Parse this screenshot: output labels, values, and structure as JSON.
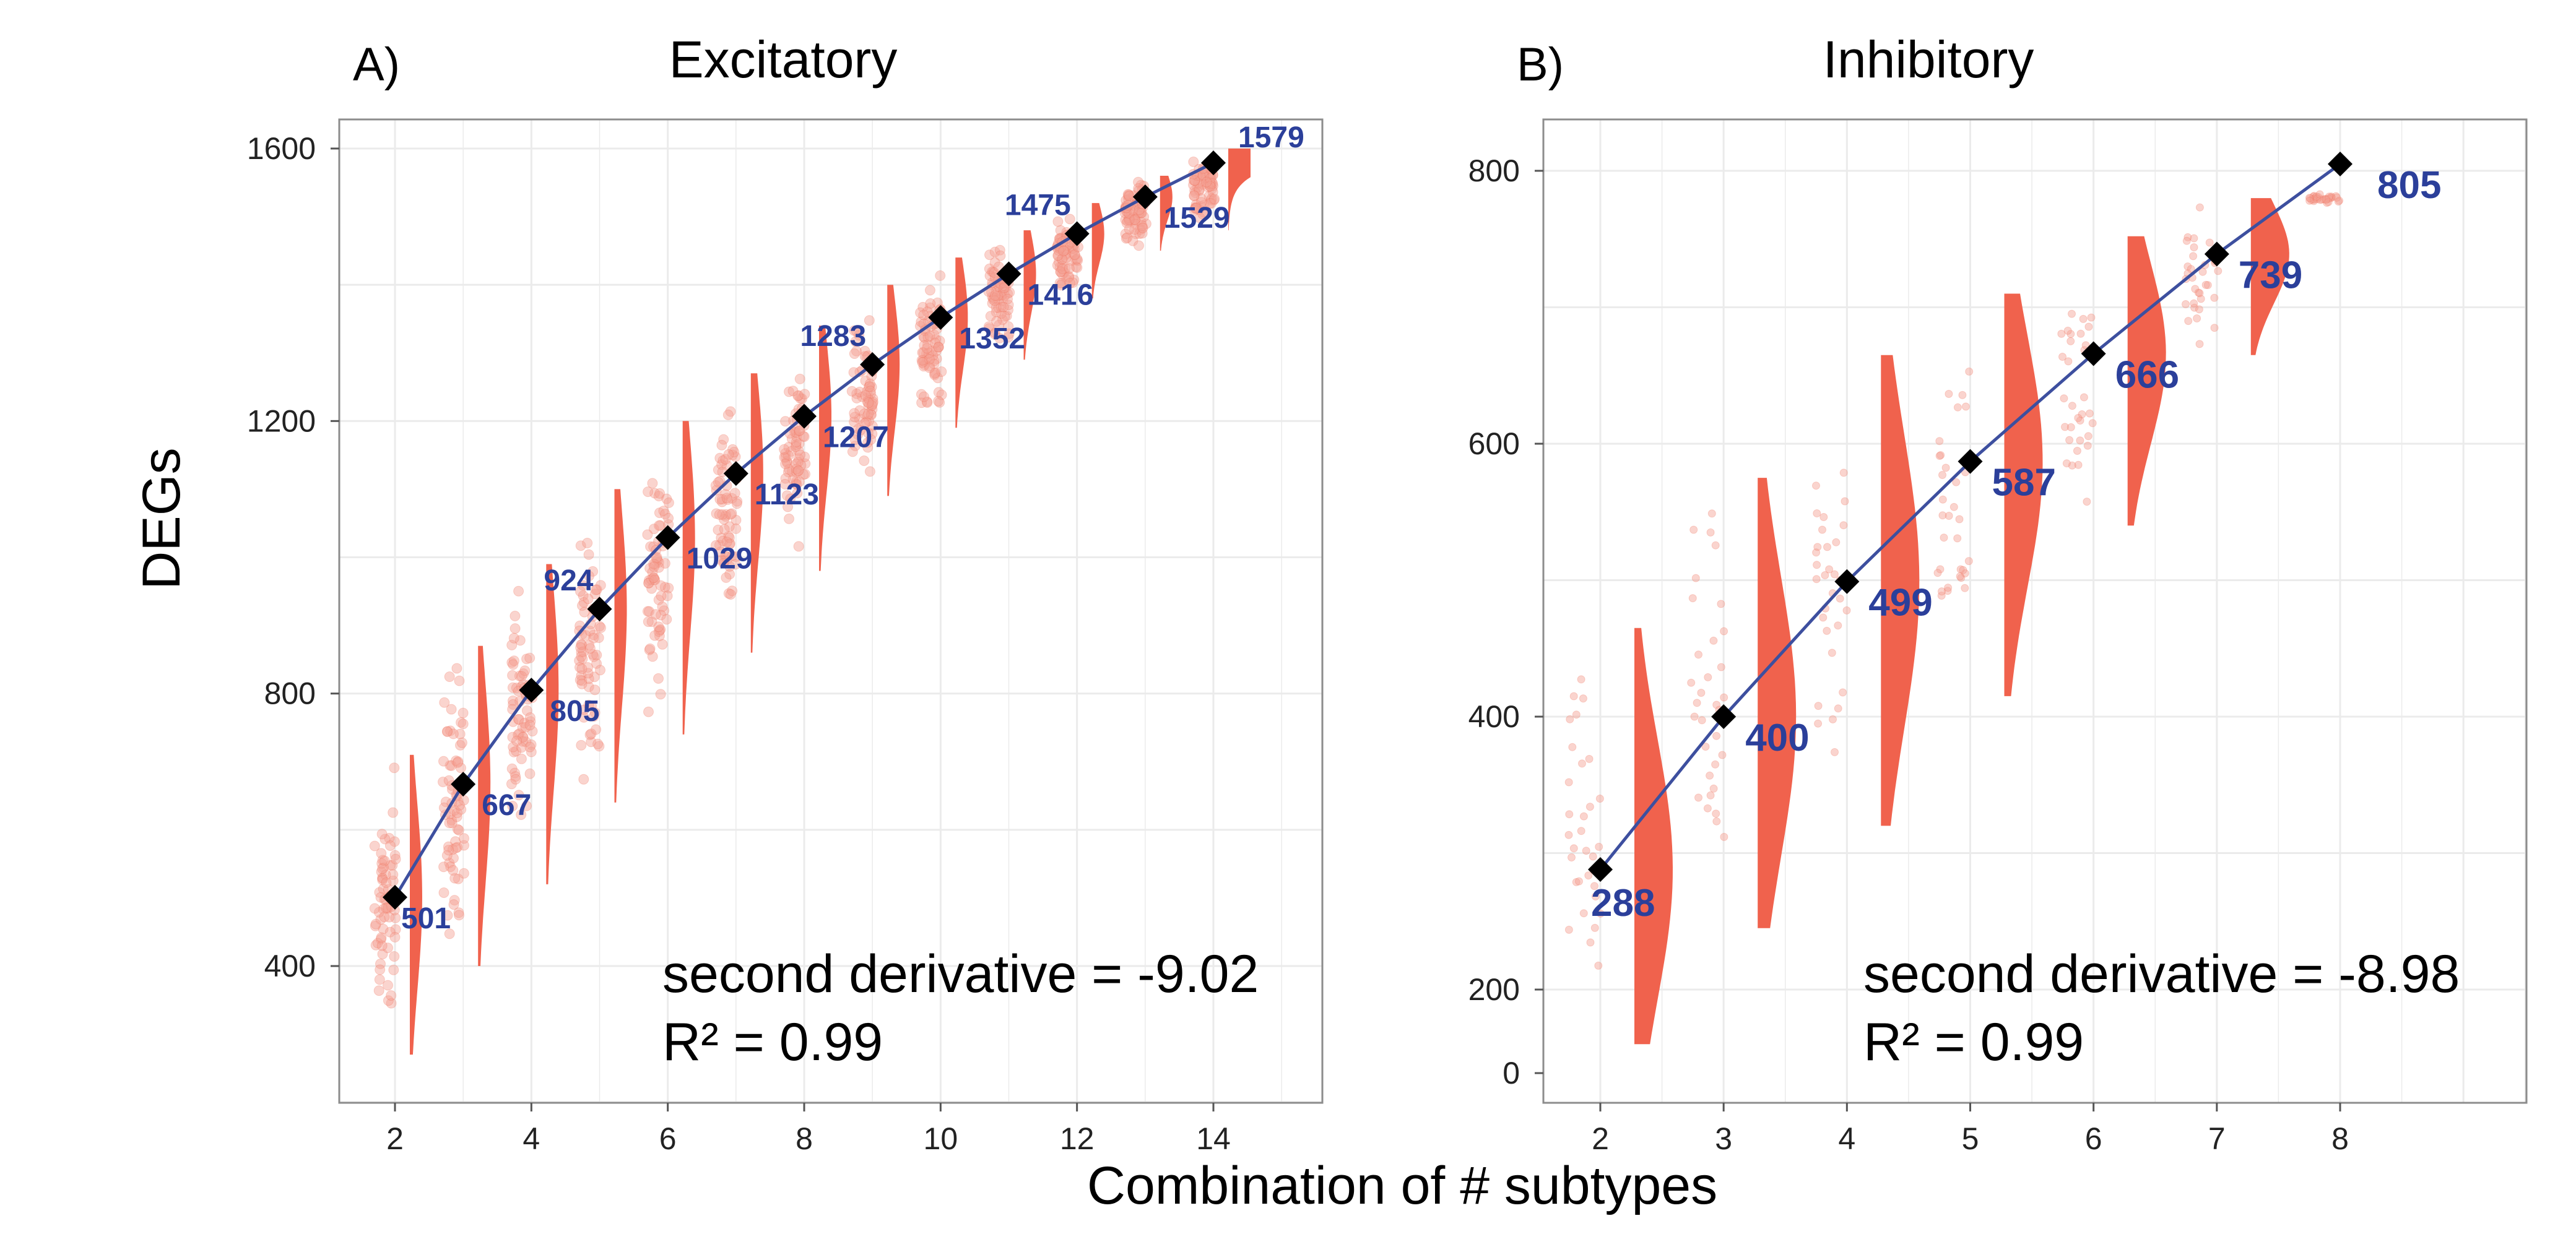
{
  "figure": {
    "xlabel": "Combination of # subtypes",
    "ylabel": "DEGs",
    "colors": {
      "fit_line": "#3d4f9f",
      "violin": "#f0624d",
      "points": "#f3a093",
      "marker": "#000000",
      "data_label": "#2b3f9a",
      "grid": "#ebebeb",
      "panel_border": "#8c8c8c"
    }
  },
  "chart_data": [
    {
      "type": "scatter",
      "panel": "A)",
      "title": "Excitatory",
      "x": [
        2,
        3,
        4,
        5,
        6,
        7,
        8,
        9,
        10,
        11,
        12,
        13,
        14
      ],
      "y": [
        501,
        667,
        805,
        924,
        1029,
        1123,
        1207,
        1283,
        1352,
        1416,
        1475,
        1529,
        1579
      ],
      "point_labels": [
        "501",
        "667",
        "805",
        "924",
        "1029",
        "1123",
        "1207",
        "1283",
        "1352",
        "1416",
        "1475",
        "1529",
        "1579"
      ],
      "xticks": [
        "2",
        "4",
        "6",
        "8",
        "10",
        "12",
        "14"
      ],
      "yticks": [
        "400",
        "800",
        "1200",
        "1600"
      ],
      "xlim": [
        1.1,
        15.8
      ],
      "ylim": [
        200,
        1640
      ],
      "violin_ranges": [
        [
          270,
          710
        ],
        [
          400,
          870
        ],
        [
          520,
          990
        ],
        [
          640,
          1100
        ],
        [
          740,
          1200
        ],
        [
          860,
          1270
        ],
        [
          980,
          1340
        ],
        [
          1090,
          1400
        ],
        [
          1190,
          1440
        ],
        [
          1290,
          1480
        ],
        [
          1380,
          1520
        ],
        [
          1450,
          1560
        ],
        [
          1480,
          1600
        ]
      ],
      "annotation": {
        "second_derivative": "second derivative = -9.02",
        "r2": "R² = 0.99"
      }
    },
    {
      "type": "scatter",
      "panel": "B)",
      "title": "Inhibitory",
      "x": [
        2,
        3,
        4,
        5,
        6,
        7,
        8
      ],
      "y": [
        288,
        400,
        499,
        587,
        666,
        739,
        805
      ],
      "point_labels": [
        "288",
        "400",
        "499",
        "587",
        "666",
        "739",
        "805"
      ],
      "xticks": [
        "2",
        "3",
        "4",
        "5",
        "6",
        "7",
        "8"
      ],
      "yticks": [
        "0",
        "200",
        "400",
        "600",
        "800"
      ],
      "xlim": [
        1.55,
        9.55
      ],
      "ylim": [
        135,
        840
      ],
      "violin_ranges": [
        [
          160,
          465
        ],
        [
          245,
          575
        ],
        [
          320,
          665
        ],
        [
          415,
          710
        ],
        [
          540,
          752
        ],
        [
          665,
          780
        ],
        [
          780,
          780
        ]
      ],
      "annotation": {
        "second_derivative": "second derivative = -8.98",
        "r2": "R² = 0.99"
      }
    }
  ]
}
